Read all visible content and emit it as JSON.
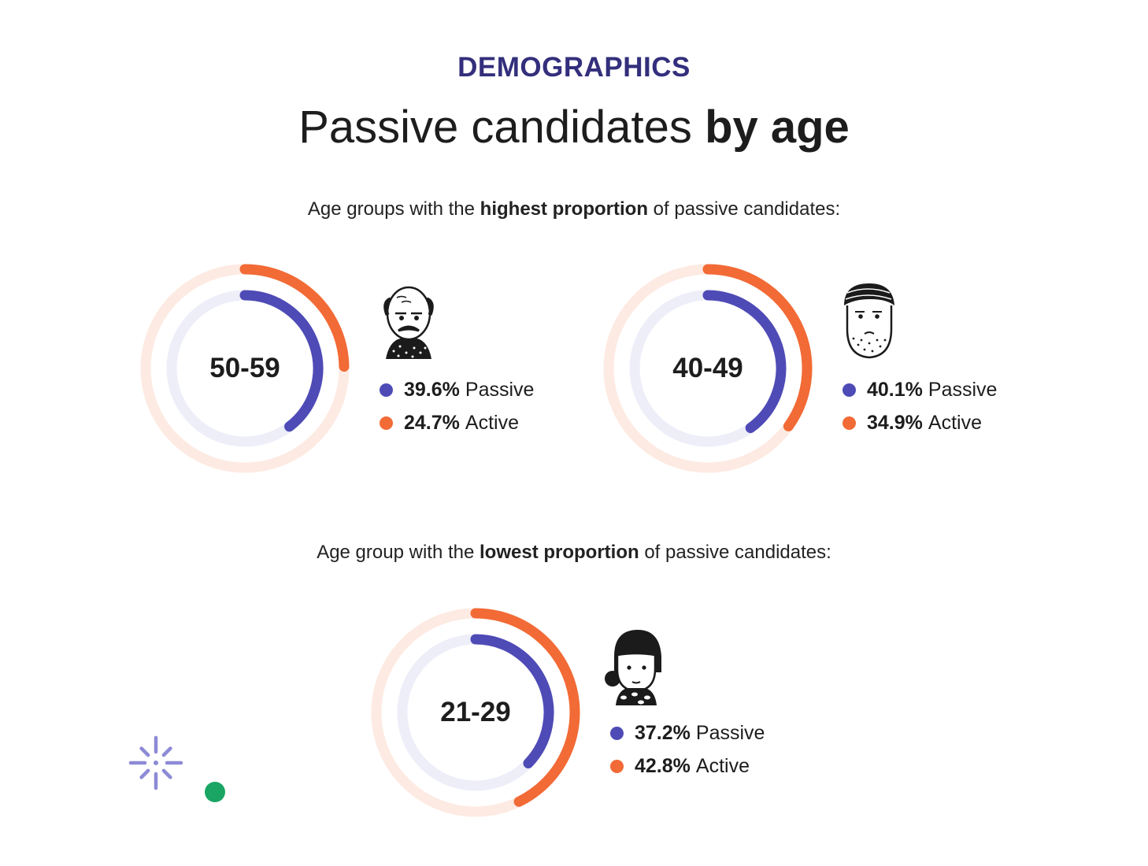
{
  "header": {
    "eyebrow": "DEMOGRAPHICS",
    "title_regular": "Passive candidates",
    "title_bold": "by age"
  },
  "sections": {
    "highest": {
      "pre": "Age groups with the",
      "bold": "highest proportion",
      "post": "of passive candidates:"
    },
    "lowest": {
      "pre": "Age group with the",
      "bold": "lowest proportion",
      "post": "of passive candidates:"
    }
  },
  "colors": {
    "passive": "#4e4bb6",
    "active": "#f26a36",
    "passive_track": "#eeeef9",
    "active_track": "#fdeae2",
    "accent_dark": "#332f7c",
    "deco_purple": "#8d8ad6",
    "deco_green": "#1aa564"
  },
  "chart_data": [
    {
      "type": "pie",
      "title": "50-59",
      "series": [
        {
          "name": "Passive",
          "value": 39.6,
          "display": "39.6%"
        },
        {
          "name": "Active",
          "value": 24.7,
          "display": "24.7%"
        }
      ],
      "icon": "bald-man-mustache-icon"
    },
    {
      "type": "pie",
      "title": "40-49",
      "series": [
        {
          "name": "Passive",
          "value": 40.1,
          "display": "40.1%"
        },
        {
          "name": "Active",
          "value": 34.9,
          "display": "34.9%"
        }
      ],
      "icon": "bearded-man-icon"
    },
    {
      "type": "pie",
      "title": "21-29",
      "series": [
        {
          "name": "Passive",
          "value": 37.2,
          "display": "37.2%"
        },
        {
          "name": "Active",
          "value": 42.8,
          "display": "42.8%"
        }
      ],
      "icon": "young-woman-icon"
    }
  ]
}
